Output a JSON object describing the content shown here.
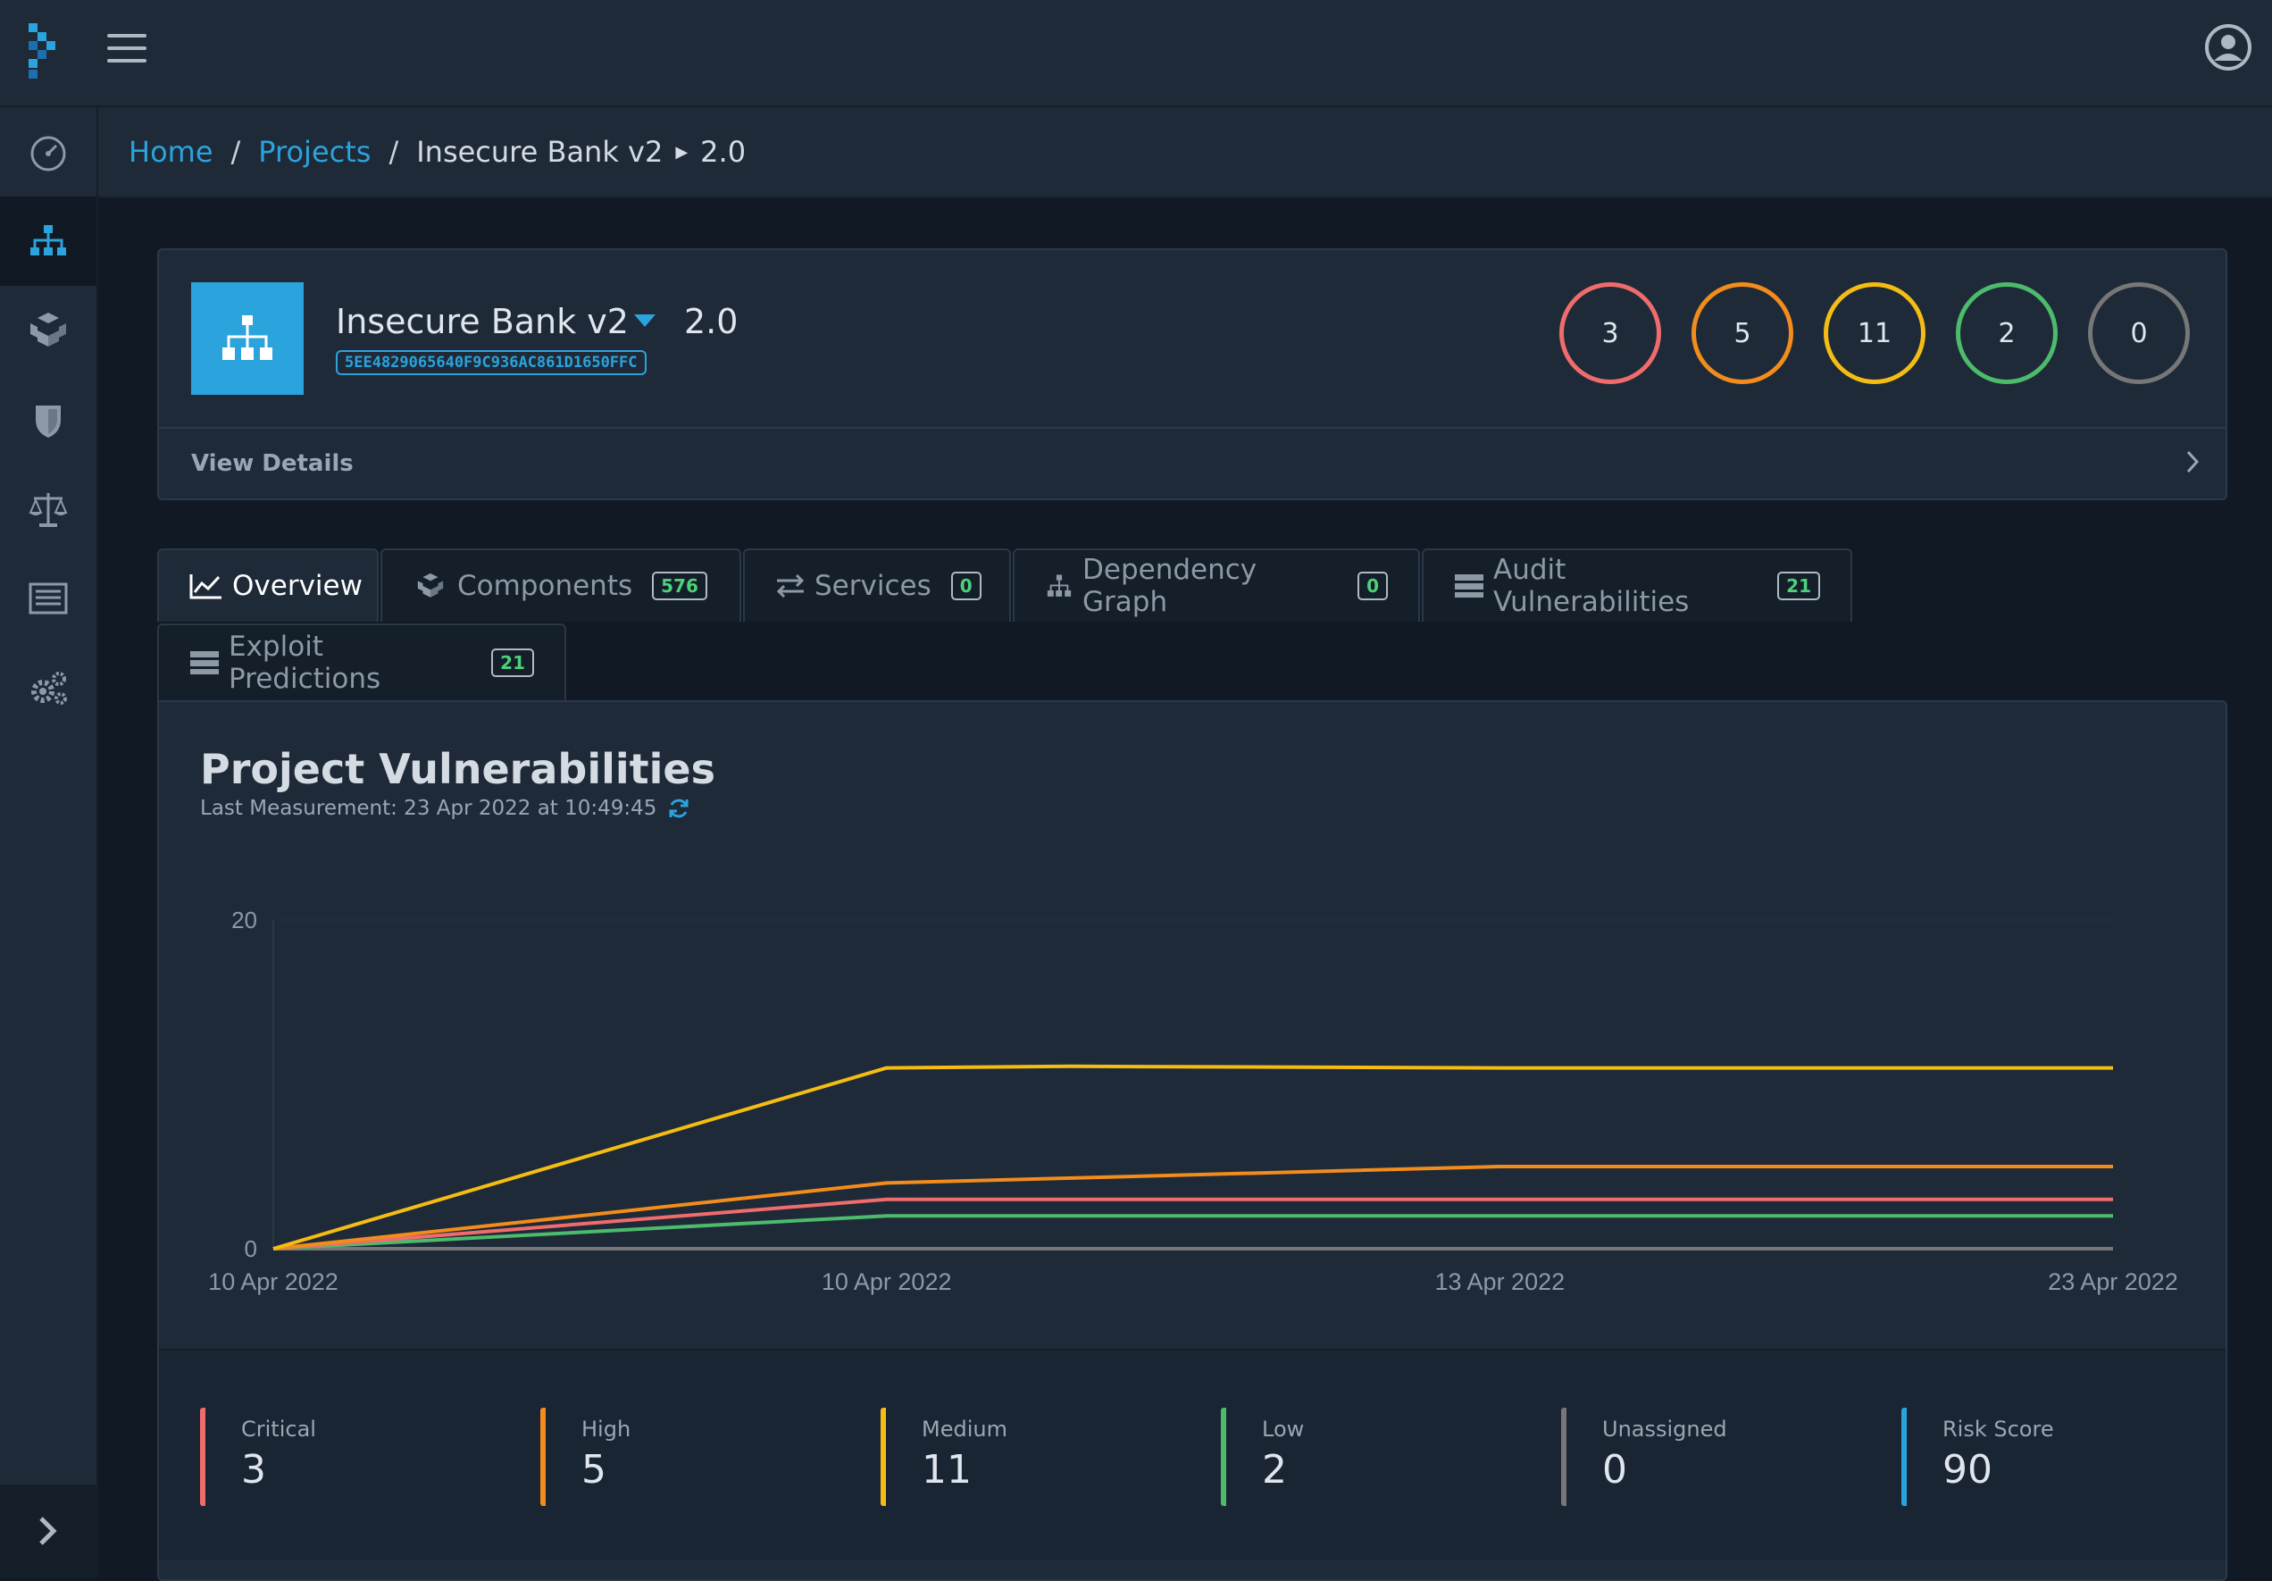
{
  "breadcrumb": {
    "home": "Home",
    "projects": "Projects",
    "project": "Insecure Bank v2",
    "version": "2.0"
  },
  "project": {
    "name": "Insecure Bank v2",
    "version": "2.0",
    "uuid": "5EE4829065640F9C936AC861D1650FFC",
    "view_details": "View Details",
    "severity_counts": [
      {
        "name": "critical",
        "value": "3",
        "color": "#f06c6c"
      },
      {
        "name": "high",
        "value": "5",
        "color": "#f28c1c"
      },
      {
        "name": "medium",
        "value": "11",
        "color": "#f5bd14"
      },
      {
        "name": "low",
        "value": "2",
        "color": "#4cbb6c"
      },
      {
        "name": "unassigned",
        "value": "0",
        "color": "#777777"
      }
    ]
  },
  "tabs": {
    "overview": {
      "label": "Overview"
    },
    "components": {
      "label": "Components",
      "count": "576"
    },
    "services": {
      "label": "Services",
      "count": "0"
    },
    "dependency_graph": {
      "label": "Dependency Graph",
      "count": "0"
    },
    "audit": {
      "label": "Audit Vulnerabilities",
      "count": "21"
    },
    "exploit": {
      "label": "Exploit Predictions",
      "count": "21"
    }
  },
  "chart": {
    "title": "Project Vulnerabilities",
    "last_measurement": "Last Measurement: 23 Apr 2022 at 10:49:45"
  },
  "chart_data": {
    "type": "line",
    "title": "Project Vulnerabilities",
    "categories": [
      "10 Apr 2022",
      "10 Apr 2022",
      "13 Apr 2022",
      "23 Apr 2022"
    ],
    "x": [
      0,
      1,
      2,
      3
    ],
    "ylim": [
      0,
      20
    ],
    "yticks": [
      "0",
      "20"
    ],
    "grid": false,
    "series": [
      {
        "name": "Medium",
        "color": "#f5bd14",
        "points": [
          [
            0,
            0
          ],
          [
            1,
            11
          ],
          [
            1.3,
            11.1
          ],
          [
            2,
            11
          ],
          [
            3,
            11
          ]
        ]
      },
      {
        "name": "High",
        "color": "#f28c1c",
        "points": [
          [
            0,
            0
          ],
          [
            1,
            4
          ],
          [
            2,
            5
          ],
          [
            3,
            5
          ]
        ]
      },
      {
        "name": "Critical",
        "color": "#f06c6c",
        "points": [
          [
            0,
            0
          ],
          [
            1,
            3
          ],
          [
            2,
            3
          ],
          [
            3,
            3
          ]
        ]
      },
      {
        "name": "Low",
        "color": "#4cbb6c",
        "points": [
          [
            0,
            0
          ],
          [
            1,
            2
          ],
          [
            2,
            2
          ],
          [
            3,
            2
          ]
        ]
      },
      {
        "name": "Unassigned",
        "color": "#777777",
        "points": [
          [
            0,
            0
          ],
          [
            1,
            0
          ],
          [
            2,
            0
          ],
          [
            3,
            0
          ]
        ]
      }
    ]
  },
  "stats": [
    {
      "label": "Critical",
      "value": "3",
      "color": "#f06c6c"
    },
    {
      "label": "High",
      "value": "5",
      "color": "#f28c1c"
    },
    {
      "label": "Medium",
      "value": "11",
      "color": "#f5bd14"
    },
    {
      "label": "Low",
      "value": "2",
      "color": "#4cbb6c"
    },
    {
      "label": "Unassigned",
      "value": "0",
      "color": "#777777"
    },
    {
      "label": "Risk Score",
      "value": "90",
      "color": "#2ba3dc"
    }
  ],
  "colors": {
    "accent": "#2ba3dc",
    "badge_text": "#4dd17a"
  }
}
